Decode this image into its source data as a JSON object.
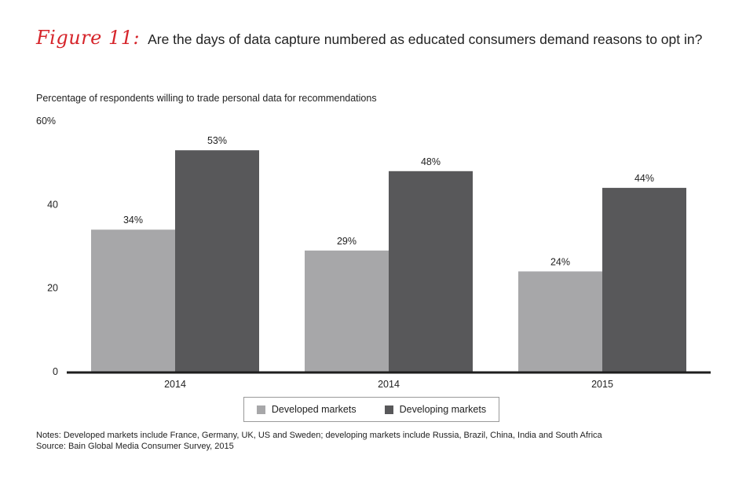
{
  "figure_label": "Figure 11:",
  "figure_title": "Are the days of data capture numbered as educated consumers demand reasons to opt in?",
  "colors": {
    "accent": "#d6252b",
    "developed": "#a7a7a9",
    "developing": "#58585a",
    "axis": "#1e1e1e"
  },
  "chart_data": {
    "type": "bar",
    "title": "Percentage of respondents willing to trade personal data for recommendations",
    "xlabel": "",
    "ylabel": "",
    "categories": [
      "2014",
      "2014",
      "2015"
    ],
    "series": [
      {
        "name": "Developed markets",
        "color": "#a7a7a9",
        "values": [
          34,
          29,
          24
        ],
        "labels": [
          "34%",
          "29%",
          "24%"
        ]
      },
      {
        "name": "Developing markets",
        "color": "#58585a",
        "values": [
          53,
          48,
          44
        ],
        "labels": [
          "53%",
          "48%",
          "44%"
        ]
      }
    ],
    "ylim": [
      0,
      60
    ],
    "yticks": [
      0,
      20,
      40,
      60
    ],
    "ytick_labels": [
      "0",
      "20",
      "40",
      "60%"
    ],
    "grid": false,
    "legend_position": "bottom-center"
  },
  "notes": {
    "line1": "Notes: Developed markets include France, Germany, UK, US and Sweden; developing markets include Russia, Brazil, China, India and South Africa",
    "line2": "Source: Bain Global Media Consumer Survey, 2015"
  }
}
